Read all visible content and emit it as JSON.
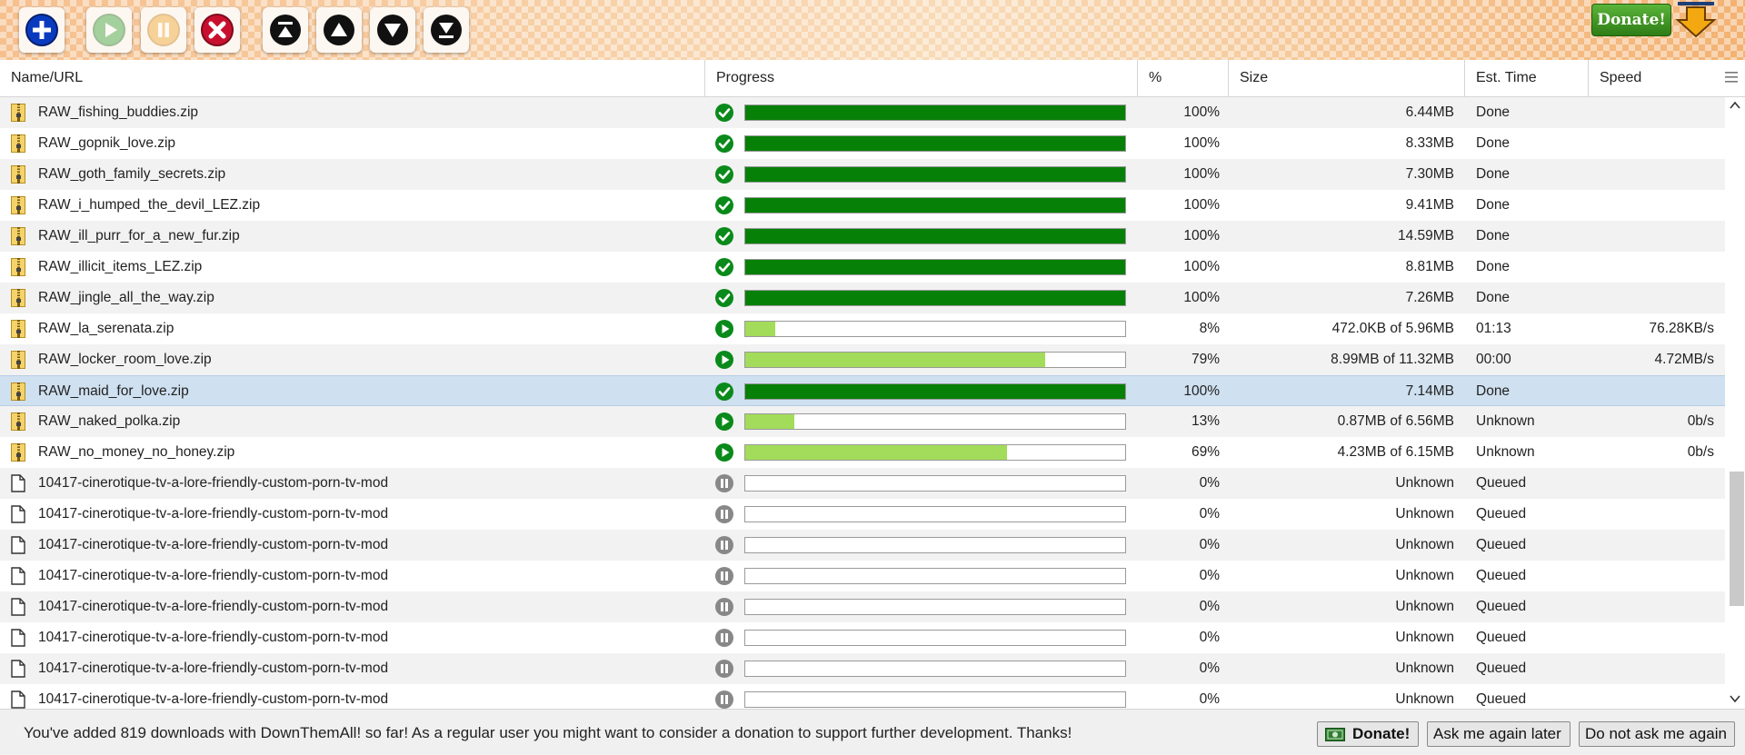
{
  "toolbar": {
    "buttons": [
      {
        "name": "add-download-button",
        "icon": "plus-icon"
      },
      {
        "name": "resume-button",
        "icon": "play-icon"
      },
      {
        "name": "pause-button",
        "icon": "pause-icon"
      },
      {
        "name": "cancel-button",
        "icon": "cancel-icon"
      },
      {
        "name": "move-top-button",
        "icon": "move-top-icon"
      },
      {
        "name": "move-up-button",
        "icon": "move-up-icon"
      },
      {
        "name": "move-down-button",
        "icon": "move-down-icon"
      },
      {
        "name": "move-bottom-button",
        "icon": "move-bottom-icon"
      }
    ],
    "donate_label": "Donate!"
  },
  "columns": {
    "name": "Name/URL",
    "progress": "Progress",
    "percent": "%",
    "size": "Size",
    "eta": "Est. Time",
    "speed": "Speed"
  },
  "colors": {
    "done": "#078007",
    "running": "#a2dc5a",
    "selected": "#cfe0f0"
  },
  "downloads": [
    {
      "name": "RAW_fishing_buddies.zip",
      "type": "zip",
      "state": "done",
      "progress": 1.0,
      "percent": "100%",
      "size": "6.44MB",
      "eta": "Done",
      "speed": ""
    },
    {
      "name": "RAW_gopnik_love.zip",
      "type": "zip",
      "state": "done",
      "progress": 1.0,
      "percent": "100%",
      "size": "8.33MB",
      "eta": "Done",
      "speed": ""
    },
    {
      "name": "RAW_goth_family_secrets.zip",
      "type": "zip",
      "state": "done",
      "progress": 1.0,
      "percent": "100%",
      "size": "7.30MB",
      "eta": "Done",
      "speed": ""
    },
    {
      "name": "RAW_i_humped_the_devil_LEZ.zip",
      "type": "zip",
      "state": "done",
      "progress": 1.0,
      "percent": "100%",
      "size": "9.41MB",
      "eta": "Done",
      "speed": ""
    },
    {
      "name": "RAW_ill_purr_for_a_new_fur.zip",
      "type": "zip",
      "state": "done",
      "progress": 1.0,
      "percent": "100%",
      "size": "14.59MB",
      "eta": "Done",
      "speed": ""
    },
    {
      "name": "RAW_illicit_items_LEZ.zip",
      "type": "zip",
      "state": "done",
      "progress": 1.0,
      "percent": "100%",
      "size": "8.81MB",
      "eta": "Done",
      "speed": ""
    },
    {
      "name": "RAW_jingle_all_the_way.zip",
      "type": "zip",
      "state": "done",
      "progress": 1.0,
      "percent": "100%",
      "size": "7.26MB",
      "eta": "Done",
      "speed": ""
    },
    {
      "name": "RAW_la_serenata.zip",
      "type": "zip",
      "state": "running",
      "progress": 0.08,
      "percent": "8%",
      "size": "472.0KB of 5.96MB",
      "eta": "01:13",
      "speed": "76.28KB/s"
    },
    {
      "name": "RAW_locker_room_love.zip",
      "type": "zip",
      "state": "running",
      "progress": 0.79,
      "percent": "79%",
      "size": "8.99MB of 11.32MB",
      "eta": "00:00",
      "speed": "4.72MB/s"
    },
    {
      "name": "RAW_maid_for_love.zip",
      "type": "zip",
      "state": "done",
      "progress": 1.0,
      "percent": "100%",
      "size": "7.14MB",
      "eta": "Done",
      "speed": "",
      "selected": true
    },
    {
      "name": "RAW_naked_polka.zip",
      "type": "zip",
      "state": "running",
      "progress": 0.13,
      "percent": "13%",
      "size": "0.87MB of 6.56MB",
      "eta": "Unknown",
      "speed": "0b/s"
    },
    {
      "name": "RAW_no_money_no_honey.zip",
      "type": "zip",
      "state": "running",
      "progress": 0.69,
      "percent": "69%",
      "size": "4.23MB of 6.15MB",
      "eta": "Unknown",
      "speed": "0b/s"
    },
    {
      "name": "10417-cinerotique-tv-a-lore-friendly-custom-porn-tv-mod",
      "type": "file",
      "state": "queued",
      "progress": 0,
      "percent": "0%",
      "size": "Unknown",
      "eta": "Queued",
      "speed": ""
    },
    {
      "name": "10417-cinerotique-tv-a-lore-friendly-custom-porn-tv-mod",
      "type": "file",
      "state": "queued",
      "progress": 0,
      "percent": "0%",
      "size": "Unknown",
      "eta": "Queued",
      "speed": ""
    },
    {
      "name": "10417-cinerotique-tv-a-lore-friendly-custom-porn-tv-mod",
      "type": "file",
      "state": "queued",
      "progress": 0,
      "percent": "0%",
      "size": "Unknown",
      "eta": "Queued",
      "speed": ""
    },
    {
      "name": "10417-cinerotique-tv-a-lore-friendly-custom-porn-tv-mod",
      "type": "file",
      "state": "queued",
      "progress": 0,
      "percent": "0%",
      "size": "Unknown",
      "eta": "Queued",
      "speed": ""
    },
    {
      "name": "10417-cinerotique-tv-a-lore-friendly-custom-porn-tv-mod",
      "type": "file",
      "state": "queued",
      "progress": 0,
      "percent": "0%",
      "size": "Unknown",
      "eta": "Queued",
      "speed": ""
    },
    {
      "name": "10417-cinerotique-tv-a-lore-friendly-custom-porn-tv-mod",
      "type": "file",
      "state": "queued",
      "progress": 0,
      "percent": "0%",
      "size": "Unknown",
      "eta": "Queued",
      "speed": ""
    },
    {
      "name": "10417-cinerotique-tv-a-lore-friendly-custom-porn-tv-mod",
      "type": "file",
      "state": "queued",
      "progress": 0,
      "percent": "0%",
      "size": "Unknown",
      "eta": "Queued",
      "speed": ""
    },
    {
      "name": "10417-cinerotique-tv-a-lore-friendly-custom-porn-tv-mod",
      "type": "file",
      "state": "queued",
      "progress": 0,
      "percent": "0%",
      "size": "Unknown",
      "eta": "Queued",
      "speed": ""
    }
  ],
  "notification": {
    "message": "You've added 819 downloads with DownThemAll! so far! As a regular user you might want to consider a donation to support further development. Thanks!",
    "donate_label": "Donate!",
    "later_label": "Ask me again later",
    "never_label": "Do not ask me again"
  }
}
